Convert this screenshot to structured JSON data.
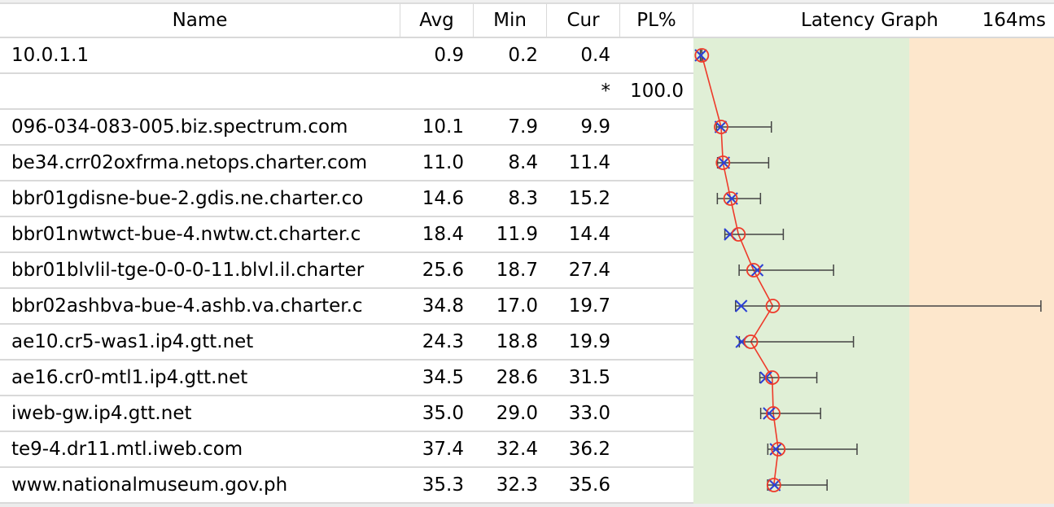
{
  "columns": {
    "name": "Name",
    "avg": "Avg",
    "min": "Min",
    "cur": "Cur",
    "pl": "PL%",
    "graph": "Latency Graph",
    "scale_max": "164ms"
  },
  "graph_scale_ms": 164,
  "zone_green_max_ms": 100,
  "colors": {
    "zone_green": "#e0efd6",
    "zone_orange": "#fde7cc",
    "avg_marker": "#ee3a2a",
    "cur_marker": "#2b3fd6",
    "range_line": "#444444",
    "path_line": "#ee3a2a"
  },
  "hops": [
    {
      "name": "10.0.1.1",
      "avg": "0.9",
      "min": "0.2",
      "cur": "0.4",
      "pl": "",
      "max": 0.9
    },
    {
      "name": "",
      "avg": "",
      "min": "",
      "cur": "*",
      "pl": "100.0",
      "max": null
    },
    {
      "name": "096-034-083-005.biz.spectrum.com",
      "avg": "10.1",
      "min": "7.9",
      "cur": "9.9",
      "pl": "",
      "max": 34.1
    },
    {
      "name": "be34.crr02oxfrma.netops.charter.com",
      "avg": "11.0",
      "min": "8.4",
      "cur": "11.4",
      "pl": "",
      "max": 32.8
    },
    {
      "name": "bbr01gdisne-bue-2.gdis.ne.charter.co",
      "avg": "14.6",
      "min": "8.3",
      "cur": "15.2",
      "pl": "",
      "max": 28.9
    },
    {
      "name": "bbr01nwtwct-bue-4.nwtw.ct.charter.c",
      "avg": "18.4",
      "min": "11.9",
      "cur": "14.4",
      "pl": "",
      "max": 39.8
    },
    {
      "name": "bbr01blvlil-tge-0-0-0-11.blvl.il.charter",
      "avg": "25.6",
      "min": "18.7",
      "cur": "27.4",
      "pl": "",
      "max": 63.8
    },
    {
      "name": "bbr02ashbva-bue-4.ashb.va.charter.c",
      "avg": "34.8",
      "min": "17.0",
      "cur": "19.7",
      "pl": "",
      "max": 162.8
    },
    {
      "name": "ae10.cr5-was1.ip4.gtt.net",
      "avg": "24.3",
      "min": "18.8",
      "cur": "19.9",
      "pl": "",
      "max": 73.3
    },
    {
      "name": "ae16.cr0-mtl1.ip4.gtt.net",
      "avg": "34.5",
      "min": "28.6",
      "cur": "31.5",
      "pl": "",
      "max": 55.8
    },
    {
      "name": "iweb-gw.ip4.gtt.net",
      "avg": "35.0",
      "min": "29.0",
      "cur": "33.0",
      "pl": "",
      "max": 57.6
    },
    {
      "name": "te9-4.dr11.mtl.iweb.com",
      "avg": "37.4",
      "min": "32.4",
      "cur": "36.2",
      "pl": "",
      "max": 75.0
    },
    {
      "name": "www.nationalmuseum.gov.ph",
      "avg": "35.3",
      "min": "32.3",
      "cur": "35.6",
      "pl": "",
      "max": 60.7
    }
  ]
}
